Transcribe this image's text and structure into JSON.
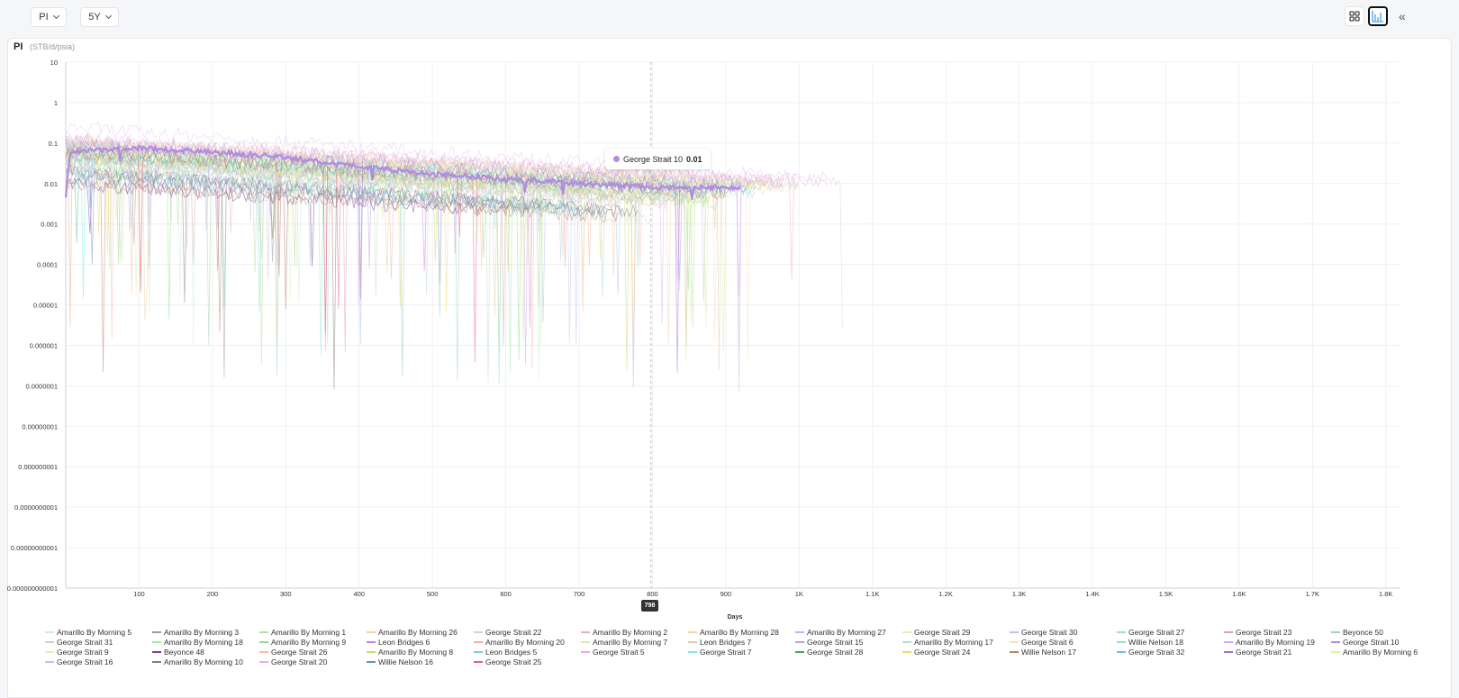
{
  "toolbar": {
    "metric": "PI",
    "range": "5Y"
  },
  "chart_data": {
    "type": "line",
    "title": "PI",
    "unit": "(STB/d/psia)",
    "xlabel": "Days",
    "ylabel": "PI",
    "yscale": "log",
    "ylim": [
      1e-12,
      10
    ],
    "xlim": [
      0,
      1820
    ],
    "y_ticks": [
      "10",
      "1",
      "0.1",
      "0.01",
      "0.001",
      "0.0001",
      "0.00001",
      "0.000001",
      "0.0000001",
      "0.00000001",
      "0.000000001",
      "0.0000000001",
      "0.00000000001",
      "0.000000000001"
    ],
    "x_ticks": [
      {
        "v": 100,
        "label": "100"
      },
      {
        "v": 200,
        "label": "200"
      },
      {
        "v": 300,
        "label": "300"
      },
      {
        "v": 400,
        "label": "400"
      },
      {
        "v": 500,
        "label": "500"
      },
      {
        "v": 600,
        "label": "600"
      },
      {
        "v": 700,
        "label": "700"
      },
      {
        "v": 800,
        "label": "800"
      },
      {
        "v": 900,
        "label": "900"
      },
      {
        "v": 1000,
        "label": "1K"
      },
      {
        "v": 1100,
        "label": "1.1K"
      },
      {
        "v": 1200,
        "label": "1.2K"
      },
      {
        "v": 1300,
        "label": "1.3K"
      },
      {
        "v": 1400,
        "label": "1.4K"
      },
      {
        "v": 1500,
        "label": "1.5K"
      },
      {
        "v": 1600,
        "label": "1.6K"
      },
      {
        "v": 1700,
        "label": "1.7K"
      },
      {
        "v": 1800,
        "label": "1.8K"
      }
    ],
    "crosshair": {
      "x": 798,
      "label": "798"
    },
    "tooltip": {
      "series": "George Strait 10",
      "value": "0.01"
    },
    "highlighted": "George Strait 10",
    "series": [
      {
        "name": "Amarillo By Morning 5",
        "color": "#c8f0dc",
        "points": [
          [
            0,
            0.08
          ],
          [
            900,
            0.006
          ]
        ]
      },
      {
        "name": "Amarillo By Morning 3",
        "color": "#9a9a9a",
        "points": [
          [
            0,
            0.02
          ],
          [
            760,
            0.002
          ]
        ]
      },
      {
        "name": "Amarillo By Morning 1",
        "color": "#b7e0a0",
        "points": [
          [
            0,
            0.05
          ],
          [
            880,
            0.004
          ]
        ]
      },
      {
        "name": "Amarillo By Morning 26",
        "color": "#ead3a8",
        "points": [
          [
            0,
            0.1
          ],
          [
            950,
            0.01
          ]
        ]
      },
      {
        "name": "George Strait 22",
        "color": "#e6c3ef",
        "points": [
          [
            0,
            0.25
          ],
          [
            1060,
            0.012
          ]
        ]
      },
      {
        "name": "Amarillo By Morning 2",
        "color": "#eab3b3",
        "points": [
          [
            0,
            0.04
          ],
          [
            820,
            0.003
          ]
        ]
      },
      {
        "name": "Amarillo By Morning 28",
        "color": "#efd69a",
        "points": [
          [
            0,
            0.06
          ],
          [
            860,
            0.005
          ]
        ]
      },
      {
        "name": "Amarillo By Morning 27",
        "color": "#a8c2f0",
        "points": [
          [
            0,
            0.03
          ],
          [
            790,
            0.004
          ]
        ]
      },
      {
        "name": "George Strait 29",
        "color": "#e2f0b8",
        "points": [
          [
            0,
            0.07
          ],
          [
            1000,
            0.008
          ]
        ]
      },
      {
        "name": "George Strait 30",
        "color": "#c3c4e6",
        "points": [
          [
            0,
            0.09
          ],
          [
            940,
            0.006
          ]
        ]
      },
      {
        "name": "George Strait 27",
        "color": "#a8dbd4",
        "points": [
          [
            0,
            0.05
          ],
          [
            900,
            0.007
          ]
        ]
      },
      {
        "name": "George Strait 23",
        "color": "#dba1ae",
        "points": [
          [
            0,
            0.12
          ],
          [
            980,
            0.01
          ]
        ]
      },
      {
        "name": "Beyonce 50",
        "color": "#9fd3b2",
        "points": [
          [
            0,
            0.03
          ],
          [
            700,
            0.003
          ]
        ]
      },
      {
        "name": "George Strait 31",
        "color": "#cfcfc8",
        "points": [
          [
            0,
            0.01
          ],
          [
            800,
            0.0015
          ]
        ]
      },
      {
        "name": "Amarillo By Morning 18",
        "color": "#9fe8a6",
        "points": [
          [
            0,
            0.06
          ],
          [
            870,
            0.005
          ]
        ]
      },
      {
        "name": "Amarillo By Morning 9",
        "color": "#8ee08a",
        "points": [
          [
            0,
            0.04
          ],
          [
            890,
            0.003
          ]
        ]
      },
      {
        "name": "Leon Bridges 6",
        "color": "#cf80e0",
        "points": [
          [
            0,
            0.02
          ],
          [
            650,
            0.003
          ]
        ]
      },
      {
        "name": "Amarillo By Morning 20",
        "color": "#f0b29c",
        "points": [
          [
            0,
            0.05
          ],
          [
            840,
            0.004
          ]
        ]
      },
      {
        "name": "Amarillo By Morning 7",
        "color": "#d8ec9a",
        "points": [
          [
            0,
            0.07
          ],
          [
            920,
            0.006
          ]
        ]
      },
      {
        "name": "Leon Bridges 7",
        "color": "#d8cfa8",
        "points": [
          [
            0,
            0.015
          ],
          [
            700,
            0.002
          ]
        ]
      },
      {
        "name": "George Strait 15",
        "color": "#b7a2d4",
        "points": [
          [
            0,
            0.08
          ],
          [
            930,
            0.007
          ]
        ]
      },
      {
        "name": "Amarillo By Morning 17",
        "color": "#b8dccb",
        "points": [
          [
            0,
            0.05
          ],
          [
            860,
            0.005
          ]
        ]
      },
      {
        "name": "George Strait 6",
        "color": "#ede6bf",
        "points": [
          [
            0,
            0.1
          ],
          [
            1000,
            0.009
          ]
        ]
      },
      {
        "name": "Willie Nelson 18",
        "color": "#86e6cf",
        "points": [
          [
            0,
            0.02
          ],
          [
            720,
            0.002
          ]
        ]
      },
      {
        "name": "Amarillo By Morning 19",
        "color": "#c2aef0",
        "points": [
          [
            0,
            0.04
          ],
          [
            850,
            0.004
          ]
        ]
      },
      {
        "name": "George Strait 10",
        "color": "#b28be0",
        "points": [
          [
            0,
            0.005
          ],
          [
            6,
            0.06
          ],
          [
            100,
            0.075
          ],
          [
            200,
            0.06
          ],
          [
            300,
            0.045
          ],
          [
            400,
            0.026
          ],
          [
            500,
            0.017
          ],
          [
            600,
            0.013
          ],
          [
            700,
            0.01
          ],
          [
            800,
            0.008
          ],
          [
            920,
            0.008
          ]
        ]
      },
      {
        "name": "George Strait 9",
        "color": "#e8f0a8",
        "points": [
          [
            0,
            0.09
          ],
          [
            950,
            0.008
          ]
        ]
      },
      {
        "name": "Beyonce 48",
        "color": "#7a3f9a",
        "points": [
          [
            0,
            0.01
          ],
          [
            600,
            0.002
          ]
        ]
      },
      {
        "name": "George Strait 26",
        "color": "#f0bfa8",
        "points": [
          [
            0,
            0.11
          ],
          [
            970,
            0.01
          ]
        ]
      },
      {
        "name": "Amarillo By Morning 8",
        "color": "#c8d870",
        "points": [
          [
            0,
            0.05
          ],
          [
            880,
            0.004
          ]
        ]
      },
      {
        "name": "Leon Bridges 5",
        "color": "#7fcfc0",
        "points": [
          [
            0,
            0.02
          ],
          [
            700,
            0.0025
          ]
        ]
      },
      {
        "name": "George Strait 5",
        "color": "#f0a8d8",
        "points": [
          [
            0,
            0.13
          ],
          [
            1000,
            0.011
          ]
        ]
      },
      {
        "name": "George Strait 7",
        "color": "#7ce8e0",
        "points": [
          [
            0,
            0.07
          ],
          [
            940,
            0.007
          ]
        ]
      },
      {
        "name": "George Strait 28",
        "color": "#4aa070",
        "points": [
          [
            0,
            0.06
          ],
          [
            900,
            0.006
          ]
        ]
      },
      {
        "name": "George Strait 24",
        "color": "#f0d870",
        "points": [
          [
            0,
            0.08
          ],
          [
            960,
            0.008
          ]
        ]
      },
      {
        "name": "Willie Nelson 17",
        "color": "#b88070",
        "points": [
          [
            0,
            0.01
          ],
          [
            760,
            0.0015
          ]
        ]
      },
      {
        "name": "George Strait 32",
        "color": "#7cb8e8",
        "points": [
          [
            0,
            0.05
          ],
          [
            880,
            0.006
          ]
        ]
      },
      {
        "name": "George Strait 21",
        "color": "#a070d8",
        "points": [
          [
            0,
            0.09
          ],
          [
            930,
            0.008
          ]
        ]
      },
      {
        "name": "Amarillo By Morning 6",
        "color": "#e0f0b0",
        "points": [
          [
            0,
            0.04
          ],
          [
            870,
            0.004
          ]
        ]
      },
      {
        "name": "George Strait 16",
        "color": "#b8c8f0",
        "points": [
          [
            0,
            0.1
          ],
          [
            980,
            0.009
          ]
        ]
      },
      {
        "name": "Amarillo By Morning 10",
        "color": "#8a7a6a",
        "points": [
          [
            0,
            0.02
          ],
          [
            780,
            0.002
          ]
        ]
      },
      {
        "name": "George Strait 20",
        "color": "#e0b0f0",
        "points": [
          [
            0,
            0.12
          ],
          [
            1040,
            0.011
          ]
        ]
      },
      {
        "name": "Willie Nelson 16",
        "color": "#7090c8",
        "points": [
          [
            0,
            0.015
          ],
          [
            740,
            0.002
          ]
        ]
      },
      {
        "name": "George Strait 25",
        "color": "#e8607a",
        "points": [
          [
            0,
            0.06
          ],
          [
            900,
            0.006
          ]
        ]
      }
    ]
  }
}
